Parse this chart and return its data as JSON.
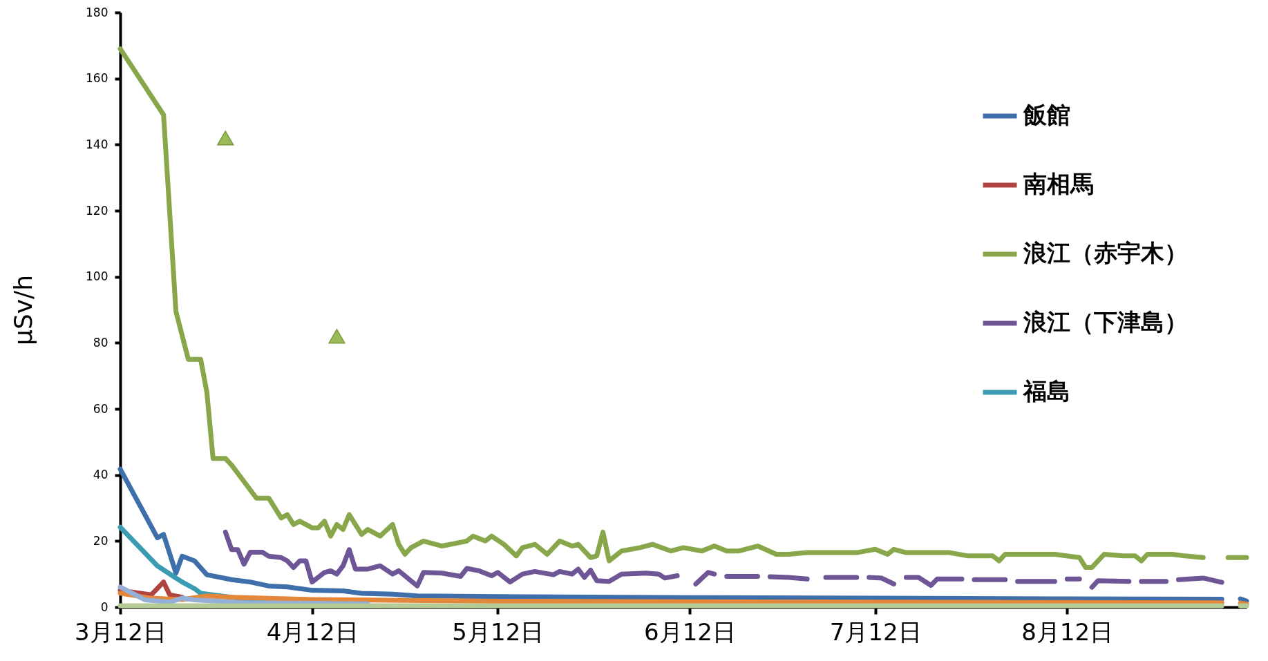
{
  "chart_data": {
    "type": "line",
    "ylabel": "µSv/h",
    "legend": "right",
    "xlim": [
      "--03-12",
      "--09-10"
    ],
    "xticks": [
      {
        "value": "--03-12",
        "label": "3月12日"
      },
      {
        "value": "--04-12",
        "label": "4月12日"
      },
      {
        "value": "--05-12",
        "label": "5月12日"
      },
      {
        "value": "--06-12",
        "label": "6月12日"
      },
      {
        "value": "--07-12",
        "label": "7月12日"
      },
      {
        "value": "--08-12",
        "label": "8月12日"
      }
    ],
    "ylim": [
      0,
      180
    ],
    "yticks": [
      0,
      20,
      40,
      60,
      80,
      100,
      120,
      140,
      160,
      180
    ],
    "series": [
      {
        "name": "飯館",
        "color": "#3f6faa",
        "x": [
          "--03-12",
          "--03-18",
          "--03-19",
          "--03-21",
          "--03-22",
          "--03-24",
          "--03-26",
          "--03-30",
          "--04-02",
          "--04-05",
          "--04-08",
          "--04-12",
          "--04-17",
          "--04-20",
          "--04-25",
          "--04-29",
          "--05-12",
          "--06-12",
          "--07-12",
          "--08-12",
          "--09-06",
          "--09-07",
          "--09-09",
          "--09-10"
        ],
        "values": [
          41.8,
          21,
          22,
          10.3,
          15.4,
          14,
          9.8,
          8.3,
          7.6,
          6.4,
          6.1,
          5.1,
          4.9,
          4.2,
          3.9,
          3.4,
          3.2,
          2.9,
          2.7,
          2.5,
          2.4,
          null,
          2.5,
          1.8
        ]
      },
      {
        "name": "南相馬",
        "color": "#b04440",
        "x": [
          "--03-12",
          "--03-17",
          "--03-19",
          "--03-20",
          "--03-22"
        ],
        "values": [
          5.1,
          3.7,
          7.6,
          3.7,
          3.0
        ]
      },
      {
        "name": "浪江（赤宇木）",
        "color": "#88a64a",
        "x": [
          "--03-12",
          "--03-19",
          "--03-21",
          "--03-23",
          "--03-25",
          "--03-26",
          "--03-27",
          "--03-29",
          "--03-30",
          "--04-01",
          "--04-03",
          "--04-05",
          "--04-07",
          "--04-08",
          "--04-09",
          "--04-10",
          "--04-12",
          "--04-13",
          "--04-14",
          "--04-15",
          "--04-16",
          "--04-17",
          "--04-18",
          "--04-20",
          "--04-21",
          "--04-23",
          "--04-25",
          "--04-26",
          "--04-27",
          "--04-28",
          "--04-30",
          "--05-03",
          "--05-07",
          "--05-08",
          "--05-10",
          "--05-11",
          "--05-13",
          "--05-15",
          "--05-16",
          "--05-18",
          "--05-20",
          "--05-22",
          "--05-24",
          "--05-25",
          "--05-27",
          "--05-28",
          "--05-29",
          "--05-30",
          "--06-01",
          "--06-04",
          "--06-06",
          "--06-09",
          "--06-11",
          "--06-14",
          "--06-16",
          "--06-18",
          "--06-20",
          "--06-23",
          "--06-26",
          "--06-28",
          "--07-01",
          "--07-05",
          "--07-09",
          "--07-12",
          "--07-14",
          "--07-15",
          "--07-17",
          "--07-20",
          "--07-24",
          "--07-27",
          "--07-31",
          "--08-01",
          "--08-02",
          "--08-06",
          "--08-10",
          "--08-14",
          "--08-15",
          "--08-16",
          "--08-18",
          "--08-21",
          "--08-23",
          "--08-24",
          "--08-25",
          "--08-29",
          "--08-31",
          "--09-03",
          "--09-04",
          "--09-07",
          "--09-10"
        ],
        "values": [
          169,
          149,
          89.5,
          75,
          75,
          65,
          45,
          45,
          43,
          38,
          33,
          33,
          27,
          28,
          25,
          26,
          24,
          24,
          26,
          21.5,
          25,
          23.5,
          28,
          22,
          23.5,
          21.5,
          25,
          19,
          16,
          18,
          20,
          18.5,
          20,
          21.5,
          20,
          21.5,
          19,
          15.5,
          18,
          19,
          16,
          20,
          18.5,
          19,
          15,
          15.5,
          22.7,
          14,
          17,
          18,
          19,
          17,
          18,
          17,
          18.5,
          17,
          17,
          18.5,
          16,
          16,
          16.5,
          16.5,
          16.5,
          17.5,
          16,
          17.5,
          16.5,
          16.5,
          16.5,
          15.5,
          15.5,
          14,
          16,
          16,
          16,
          15,
          12,
          12,
          16,
          15.5,
          15.5,
          14,
          16,
          16,
          15.5,
          15,
          null,
          15,
          15
        ]
      },
      {
        "name": "浪江（下津島）",
        "color": "#6e5596",
        "x": [
          "--03-29",
          "--03-30",
          "--03-31",
          "--04-01",
          "--04-02",
          "--04-04",
          "--04-05",
          "--04-07",
          "--04-08",
          "--04-09",
          "--04-10",
          "--04-11",
          "--04-12",
          "--04-14",
          "--04-15",
          "--04-16",
          "--04-17",
          "--04-18",
          "--04-19",
          "--04-21",
          "--04-23",
          "--04-25",
          "--04-26",
          "--04-29",
          "--04-30",
          "--05-03",
          "--05-06",
          "--05-07",
          "--05-09",
          "--05-11",
          "--05-12",
          "--05-14",
          "--05-16",
          "--05-18",
          "--05-21",
          "--05-22",
          "--05-24",
          "--05-25",
          "--05-26",
          "--05-27",
          "--05-28",
          "--05-30",
          "--06-01",
          "--06-05",
          "--06-07",
          "--06-08",
          "--06-10",
          "--06-11",
          "--06-13",
          "--06-15",
          "--06-16",
          "--06-17",
          "--06-18",
          "--06-23",
          "--06-24",
          "--06-25",
          "--06-28",
          "--07-01",
          "--07-02",
          "--07-04",
          "--07-09",
          "--07-10",
          "--07-11",
          "--07-13",
          "--07-15",
          "--07-16",
          "--07-17",
          "--07-19",
          "--07-21",
          "--07-22",
          "--07-26",
          "--07-27",
          "--07-28",
          "--08-02",
          "--08-03",
          "--08-04",
          "--08-10",
          "--08-11",
          "--08-12",
          "--08-14",
          "--08-15",
          "--08-16",
          "--08-17",
          "--08-22",
          "--08-23",
          "--08-24",
          "--08-28",
          "--08-29",
          "--08-30",
          "--09-03",
          "--09-06"
        ],
        "values": [
          22.7,
          17.4,
          17.4,
          13,
          16.6,
          16.6,
          15.4,
          15,
          14,
          12,
          14,
          14,
          7.6,
          10.5,
          11,
          10,
          12.5,
          17.4,
          11.5,
          11.5,
          12.5,
          10,
          11,
          6.4,
          10.5,
          10.3,
          9.3,
          11.7,
          11,
          9.5,
          10.5,
          7.6,
          10,
          10.8,
          9.8,
          10.8,
          10,
          11.5,
          9,
          11.2,
          8,
          7.8,
          10,
          10.3,
          10,
          8.8,
          9.5,
          null,
          7,
          10.5,
          10,
          null,
          9.3,
          9.3,
          null,
          9.2,
          9,
          8.5,
          null,
          9,
          9,
          null,
          9,
          8.8,
          7,
          null,
          9,
          9,
          6.6,
          8.5,
          8.5,
          null,
          8.3,
          8.3,
          null,
          7.8,
          7.8,
          null,
          8.5,
          8.5,
          null,
          6,
          8,
          7.8,
          null,
          7.8,
          7.8,
          null,
          8.3,
          8.8,
          7.5
        ]
      },
      {
        "name": "福島",
        "color": "#3a9bb2",
        "x": [
          "--03-12",
          "--03-18",
          "--03-22",
          "--03-24",
          "--03-25",
          "--03-31",
          "--04-12"
        ],
        "values": [
          24.2,
          12.5,
          7.6,
          5.6,
          4.2,
          2.7,
          2.0
        ]
      },
      {
        "color": "#e4873a",
        "x": [
          "--03-12",
          "--03-17",
          "--03-22",
          "--03-26",
          "--03-30",
          "--04-12",
          "--05-12",
          "--07-12",
          "--09-06",
          "--09-07",
          "--09-09",
          "--09-10"
        ],
        "values": [
          4.2,
          2.7,
          2.3,
          3.4,
          3,
          2.3,
          1.8,
          1.5,
          1.3,
          null,
          1.2,
          0.9
        ]
      },
      {
        "color": "#95b0d6",
        "x": [
          "--03-12",
          "--03-16",
          "--03-20",
          "--03-22",
          "--03-24",
          "--04-01",
          "--04-21"
        ],
        "values": [
          6.1,
          2.2,
          1.5,
          2.7,
          2.2,
          1.3,
          1.0
        ]
      },
      {
        "color": "#b4cb95",
        "x": [
          "--03-12",
          "--09-06",
          "--09-07",
          "--09-09",
          "--09-10"
        ],
        "values": [
          0.4,
          0.4,
          null,
          0.4,
          0.4
        ]
      },
      {
        "type": "scatter",
        "marker": "triangle",
        "color": "#9bbb59",
        "x": [
          "--03-29",
          "--04-16"
        ],
        "values": [
          142,
          82
        ]
      }
    ]
  }
}
